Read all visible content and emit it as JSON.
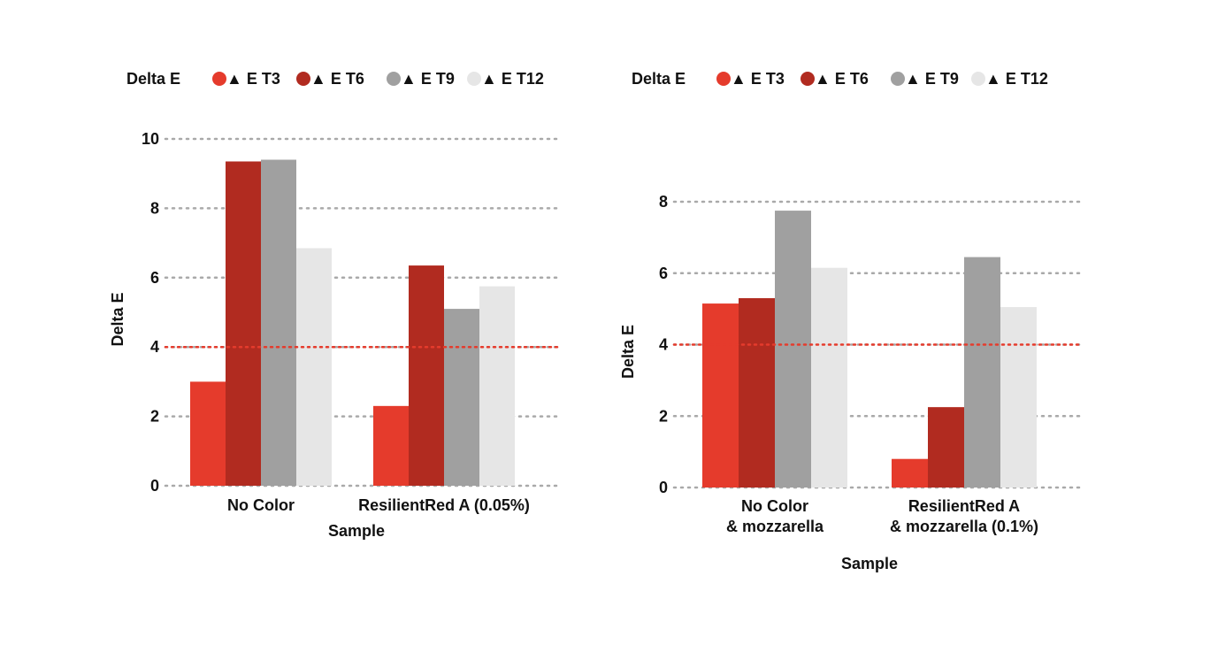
{
  "chart_data": [
    {
      "type": "bar",
      "legend_title": "Delta E",
      "legend_position": "top",
      "xlabel": "Sample",
      "ylabel": "Delta E",
      "ylim": [
        0,
        10
      ],
      "yticks": [
        0,
        2,
        4,
        6,
        8,
        10
      ],
      "grid": true,
      "threshold": 4,
      "categories": [
        [
          "No Color"
        ],
        [
          "ResilientRed A (0.05%)"
        ]
      ],
      "series": [
        {
          "name": "▲ E T3",
          "color": "#e53b2c",
          "values": [
            3.0,
            2.3
          ]
        },
        {
          "name": "▲ E T6",
          "color": "#b12b20",
          "values": [
            9.35,
            6.35
          ]
        },
        {
          "name": "▲ E T9",
          "color": "#a0a0a0",
          "values": [
            9.4,
            5.1
          ]
        },
        {
          "name": "▲ E T12",
          "color": "#e6e6e6",
          "values": [
            6.85,
            5.75
          ]
        }
      ]
    },
    {
      "type": "bar",
      "legend_title": "Delta E",
      "legend_position": "top",
      "xlabel": "Sample",
      "ylabel": "Delta E",
      "ylim": [
        0,
        8
      ],
      "yticks": [
        0,
        2,
        4,
        6,
        8
      ],
      "grid": true,
      "threshold": 4,
      "categories": [
        [
          "No Color",
          "& mozzarella"
        ],
        [
          "ResilientRed A",
          "& mozzarella (0.1%)"
        ]
      ],
      "series": [
        {
          "name": "▲ E T3",
          "color": "#e53b2c",
          "values": [
            5.15,
            0.8
          ]
        },
        {
          "name": "▲ E T6",
          "color": "#b12b20",
          "values": [
            5.3,
            2.25
          ]
        },
        {
          "name": "▲ E T9",
          "color": "#a0a0a0",
          "values": [
            7.75,
            6.45
          ]
        },
        {
          "name": "▲ E T12",
          "color": "#e6e6e6",
          "values": [
            6.15,
            5.05
          ]
        }
      ]
    }
  ],
  "colors": {
    "threshold_line": "#e53b2c",
    "grid_line": "#a9a9a9",
    "text": "#111111"
  }
}
